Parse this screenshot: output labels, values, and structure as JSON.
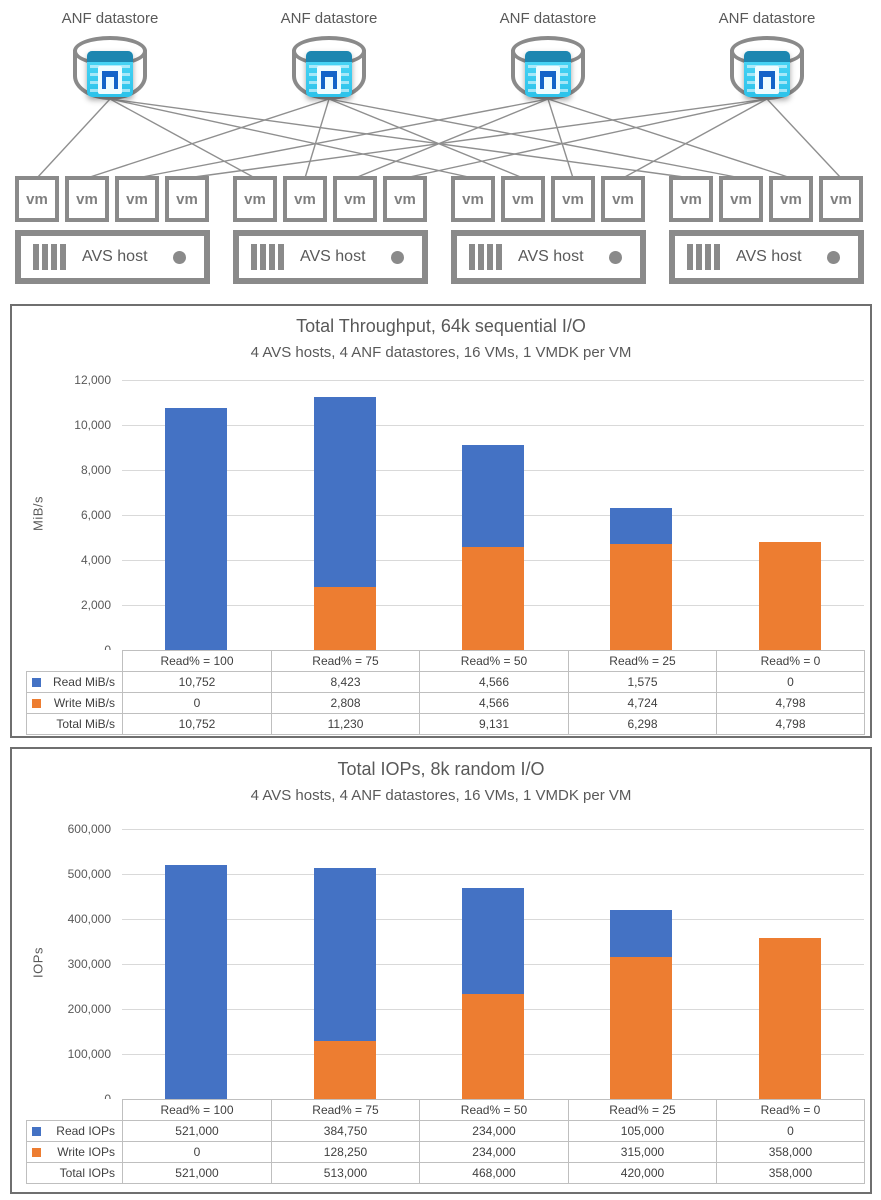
{
  "diagram": {
    "datastores": [
      {
        "label": "ANF datastore"
      },
      {
        "label": "ANF datastore"
      },
      {
        "label": "ANF datastore"
      },
      {
        "label": "ANF datastore"
      }
    ],
    "vm_label": "vm",
    "host_label": "AVS host",
    "host_count": 4,
    "vms_per_host": 4
  },
  "chart_data": [
    {
      "type": "bar",
      "stacked": true,
      "title": "Total Throughput, 64k sequential I/O",
      "subtitle": "4 AVS hosts, 4 ANF datastores, 16 VMs, 1 VMDK per VM",
      "ylabel": "MiB/s",
      "ylim": [
        0,
        12000
      ],
      "ytick_interval": 2000,
      "ytick_labels": [
        "12,000",
        "10,000",
        "8,000",
        "6,000",
        "4,000",
        "2,000",
        "0"
      ],
      "grid": true,
      "legend_position": "data-table-left",
      "categories": [
        "Read% = 100",
        "Read% = 75",
        "Read% = 50",
        "Read% = 25",
        "Read% = 0"
      ],
      "series": [
        {
          "name": "Read MiB/s",
          "color": "#4472C4",
          "values": [
            10752,
            8423,
            4566,
            1575,
            0
          ],
          "labels": [
            "10,752",
            "8,423",
            "4,566",
            "1,575",
            "0"
          ]
        },
        {
          "name": "Write MiB/s",
          "color": "#ED7D31",
          "values": [
            0,
            2808,
            4566,
            4724,
            4798
          ],
          "labels": [
            "0",
            "2,808",
            "4,566",
            "4,724",
            "4,798"
          ]
        }
      ],
      "totals": {
        "name": "Total MiB/s",
        "values": [
          10752,
          11230,
          9131,
          6298,
          4798
        ],
        "labels": [
          "10,752",
          "11,230",
          "9,131",
          "6,298",
          "4,798"
        ]
      }
    },
    {
      "type": "bar",
      "stacked": true,
      "title": "Total IOPs, 8k random I/O",
      "subtitle": "4 AVS hosts, 4 ANF datastores, 16 VMs, 1 VMDK per VM",
      "ylabel": "IOPs",
      "ylim": [
        0,
        600000
      ],
      "ytick_interval": 100000,
      "ytick_labels": [
        "600,000",
        "500,000",
        "400,000",
        "300,000",
        "200,000",
        "100,000",
        "0"
      ],
      "grid": true,
      "legend_position": "data-table-left",
      "categories": [
        "Read% = 100",
        "Read% = 75",
        "Read% = 50",
        "Read% = 25",
        "Read% = 0"
      ],
      "series": [
        {
          "name": "Read IOPs",
          "color": "#4472C4",
          "values": [
            521000,
            384750,
            234000,
            105000,
            0
          ],
          "labels": [
            "521,000",
            "384,750",
            "234,000",
            "105,000",
            "0"
          ]
        },
        {
          "name": "Write IOPs",
          "color": "#ED7D31",
          "values": [
            0,
            128250,
            234000,
            315000,
            358000
          ],
          "labels": [
            "0",
            "128,250",
            "234,000",
            "315,000",
            "358,000"
          ]
        }
      ],
      "totals": {
        "name": "Total IOPs",
        "values": [
          521000,
          513000,
          468000,
          420000,
          358000
        ],
        "labels": [
          "521,000",
          "513,000",
          "468,000",
          "420,000",
          "358,000"
        ]
      }
    }
  ]
}
